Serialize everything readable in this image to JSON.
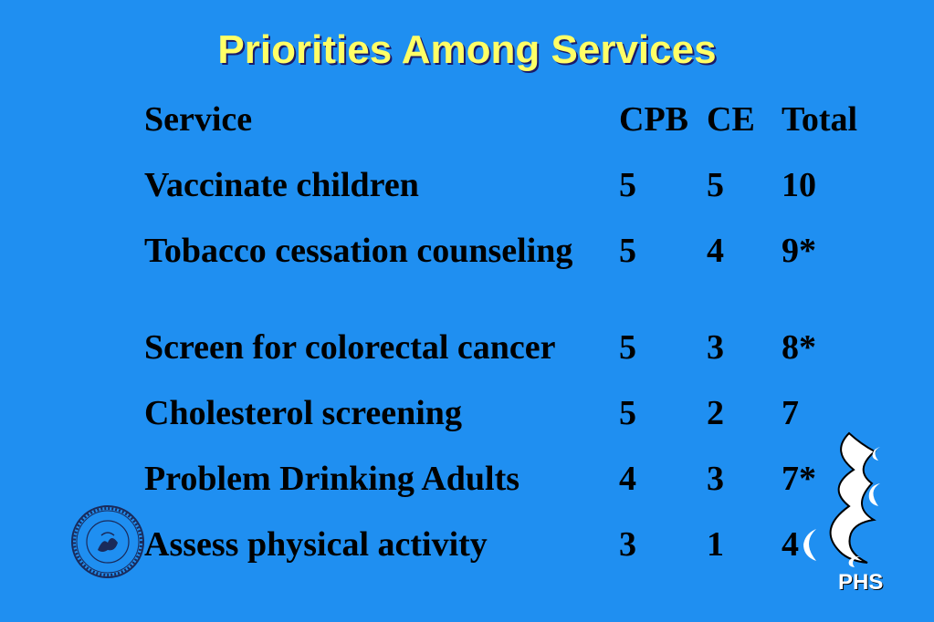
{
  "slide": {
    "title": "Priorities Among Services",
    "table": {
      "headers": [
        "Service",
        "CPB",
        "CE",
        "Total"
      ],
      "rows": [
        [
          "Vaccinate children",
          "5",
          "5",
          "10"
        ],
        [
          "Tobacco cessation counseling",
          "5",
          "4",
          "9*"
        ],
        [
          "Screen for colorectal cancer",
          "5",
          "3",
          "8*"
        ],
        [
          "Cholesterol screening",
          "5",
          "2",
          "7"
        ],
        [
          "Problem Drinking Adults",
          "4",
          "3",
          "7*"
        ],
        [
          "Assess physical activity",
          "3",
          "1",
          "4"
        ]
      ]
    },
    "logo_text": "PHS",
    "seal_icon": "state-medical-society-seal-icon",
    "logo_icon": "phs-logo-icon",
    "colors": {
      "background": "#1f8ff1",
      "title": "#ffff66",
      "text": "#000000"
    }
  }
}
